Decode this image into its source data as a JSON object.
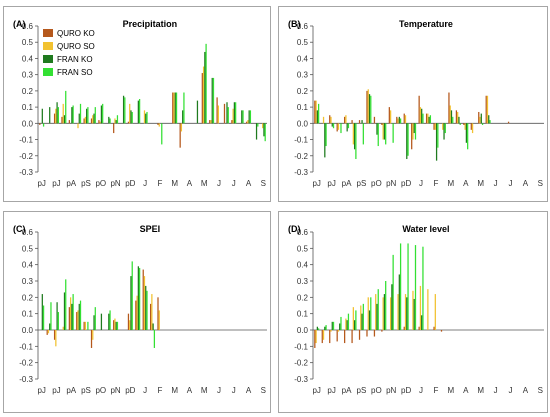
{
  "figure": {
    "colors": {
      "QURO KO": "#b5581c",
      "QURO SO": "#f2c230",
      "FRAN KO": "#1f7a1f",
      "FRAN SO": "#33e033",
      "frame": "#a6a6a6",
      "axis": "#555555"
    }
  },
  "chart_data": [
    {
      "type": "bar",
      "panel_label": "(A)",
      "title": "Precipitation",
      "categories": [
        "pJ",
        "",
        "pJ",
        "",
        "pA",
        "",
        "pS",
        "",
        "pO",
        "",
        "pN",
        "",
        "pD",
        "",
        "J",
        "",
        "F",
        "",
        "M",
        "",
        "A",
        "",
        "M",
        "",
        "J",
        "",
        "J",
        "",
        "A",
        "",
        "S"
      ],
      "ylim": [
        -0.3,
        0.6
      ],
      "yticks": [
        "-0.3",
        "-0.2",
        "-0.1",
        "0.0",
        "0.1",
        "0.2",
        "0.3",
        "0.4",
        "0.5",
        "0.6"
      ],
      "legend": [
        "QURO KO",
        "QURO SO",
        "FRAN KO",
        "FRAN SO"
      ],
      "series": [
        {
          "name": "QURO KO",
          "values": [
            -0.01,
            0.0,
            0.06,
            0.04,
            0.02,
            0.0,
            0.03,
            0.03,
            0.02,
            0.0,
            -0.06,
            0.0,
            0.01,
            0.0,
            0.0,
            0.0,
            -0.01,
            0.0,
            0.19,
            -0.15,
            0.0,
            0.0,
            0.31,
            0.02,
            0.16,
            0.12,
            0.02,
            0.0,
            0.01,
            0.0,
            0.0
          ]
        },
        {
          "name": "QURO SO",
          "values": [
            0.0,
            0.0,
            0.09,
            0.12,
            0.0,
            -0.03,
            0.04,
            0.05,
            0.01,
            0.0,
            0.03,
            0.0,
            0.12,
            0.0,
            0.08,
            0.0,
            -0.02,
            0.0,
            0.19,
            -0.05,
            0.0,
            0.0,
            0.35,
            0.02,
            0.11,
            0.0,
            0.09,
            0.0,
            0.02,
            0.0,
            -0.03
          ]
        },
        {
          "name": "FRAN KO",
          "values": [
            0.09,
            0.1,
            0.13,
            0.05,
            0.1,
            0.06,
            0.09,
            0.06,
            0.11,
            0.04,
            0.02,
            0.17,
            0.08,
            0.14,
            0.06,
            0.0,
            0.0,
            0.0,
            0.19,
            0.08,
            0.0,
            0.14,
            0.44,
            0.28,
            0.0,
            0.13,
            0.13,
            0.08,
            0.08,
            -0.1,
            -0.08
          ]
        },
        {
          "name": "FRAN SO",
          "values": [
            -0.02,
            0.0,
            0.1,
            0.2,
            0.11,
            0.12,
            0.1,
            0.1,
            0.12,
            0.03,
            0.05,
            0.16,
            0.07,
            0.15,
            0.07,
            0.0,
            -0.13,
            0.0,
            0.19,
            0.19,
            0.0,
            0.0,
            0.49,
            0.28,
            0.0,
            0.1,
            0.13,
            0.08,
            0.08,
            -0.02,
            -0.11
          ]
        }
      ]
    },
    {
      "type": "bar",
      "panel_label": "(B)",
      "title": "Temperature",
      "categories": [
        "pJ",
        "",
        "pJ",
        "",
        "pA",
        "",
        "pS",
        "",
        "pO",
        "",
        "pN",
        "",
        "pD",
        "",
        "J",
        "",
        "F",
        "",
        "M",
        "",
        "A",
        "",
        "M",
        "",
        "J",
        "",
        "J",
        "",
        "A",
        "",
        "S"
      ],
      "ylim": [
        -0.3,
        0.6
      ],
      "yticks": [
        "-0.3",
        "-0.2",
        "-0.1",
        "0.0",
        "0.1",
        "0.2",
        "0.3",
        "0.4",
        "0.5",
        "0.6"
      ],
      "series": [
        {
          "name": "QURO KO",
          "values": [
            0.14,
            0.0,
            0.05,
            -0.05,
            0.04,
            0.02,
            0.02,
            0.2,
            0.04,
            -0.01,
            0.1,
            0.04,
            0.06,
            -0.16,
            0.17,
            0.06,
            -0.04,
            0.0,
            0.19,
            0.08,
            -0.01,
            -0.04,
            0.07,
            0.17,
            0.0,
            0.0,
            0.01,
            0.0,
            0.0,
            0.0,
            0.0
          ]
        },
        {
          "name": "QURO SO",
          "values": [
            0.14,
            0.04,
            0.04,
            -0.04,
            0.05,
            -0.13,
            0.0,
            0.21,
            0.0,
            -0.1,
            0.08,
            0.03,
            0.05,
            -0.1,
            0.1,
            0.06,
            -0.04,
            -0.04,
            0.11,
            0.07,
            -0.04,
            -0.06,
            0.04,
            0.17,
            0.0,
            0.0,
            0.0,
            0.0,
            0.0,
            0.0,
            0.0
          ]
        },
        {
          "name": "FRAN KO",
          "values": [
            0.08,
            -0.21,
            -0.02,
            0.0,
            -0.05,
            -0.16,
            0.02,
            0.18,
            -0.07,
            -0.1,
            0.0,
            0.04,
            -0.22,
            -0.06,
            0.09,
            0.04,
            -0.23,
            -0.1,
            0.08,
            0.04,
            -0.12,
            0.0,
            0.06,
            0.05,
            0.0,
            0.0,
            0.0,
            0.0,
            0.0,
            0.0,
            0.0
          ]
        },
        {
          "name": "FRAN SO",
          "values": [
            0.12,
            -0.14,
            -0.03,
            -0.06,
            -0.03,
            -0.22,
            -0.13,
            0.17,
            -0.14,
            -0.13,
            -0.12,
            0.03,
            -0.2,
            -0.1,
            0.06,
            0.05,
            -0.15,
            -0.06,
            0.04,
            -0.01,
            -0.16,
            0.0,
            -0.01,
            0.02,
            0.0,
            0.0,
            0.0,
            0.0,
            0.0,
            0.0,
            0.0
          ]
        }
      ]
    },
    {
      "type": "bar",
      "panel_label": "(C)",
      "title": "SPEI",
      "categories": [
        "pJ",
        "",
        "pJ",
        "",
        "pA",
        "",
        "pS",
        "",
        "pO",
        "",
        "pN",
        "",
        "pD",
        "",
        "J",
        "",
        "F",
        "",
        "M",
        "",
        "A",
        "",
        "M",
        "",
        "J",
        "",
        "J",
        "",
        "A",
        "",
        "S"
      ],
      "ylim": [
        -0.3,
        0.6
      ],
      "yticks": [
        "-0.3",
        "-0.2",
        "-0.1",
        "0.0",
        "0.1",
        "0.2",
        "0.3",
        "0.4",
        "0.5",
        "0.6"
      ],
      "series": [
        {
          "name": "QURO KO",
          "values": [
            0.0,
            -0.03,
            -0.06,
            0.0,
            0.14,
            0.11,
            0.05,
            -0.11,
            0.0,
            0.0,
            0.06,
            0.0,
            0.1,
            0.18,
            0.37,
            0.16,
            0.2,
            0.0,
            0.0,
            0.0,
            0.0,
            0.0,
            0.0,
            0.0,
            0.0,
            0.0,
            0.0,
            0.0,
            0.0,
            0.0,
            0.0
          ]
        },
        {
          "name": "QURO SO",
          "values": [
            0.0,
            -0.02,
            -0.1,
            0.02,
            0.2,
            0.12,
            0.05,
            -0.06,
            0.0,
            0.0,
            0.07,
            0.0,
            0.06,
            0.21,
            0.33,
            0.22,
            0.12,
            0.0,
            0.0,
            0.0,
            0.0,
            0.0,
            0.0,
            0.0,
            0.0,
            0.0,
            0.0,
            0.0,
            0.0,
            0.0,
            0.0
          ]
        },
        {
          "name": "FRAN KO",
          "values": [
            0.22,
            0.04,
            0.17,
            0.23,
            0.16,
            0.16,
            0.0,
            0.09,
            0.1,
            0.1,
            0.05,
            0.0,
            0.33,
            0.39,
            0.27,
            0.04,
            0.0,
            0.0,
            0.0,
            0.0,
            0.0,
            0.0,
            0.0,
            0.0,
            0.0,
            0.0,
            0.0,
            0.0,
            0.0,
            0.0,
            0.0
          ]
        },
        {
          "name": "FRAN SO",
          "values": [
            0.15,
            0.17,
            0.11,
            0.31,
            0.22,
            0.18,
            0.05,
            0.14,
            0.0,
            0.12,
            0.05,
            0.0,
            0.42,
            0.38,
            0.24,
            -0.11,
            0.0,
            0.0,
            0.0,
            0.0,
            0.0,
            0.0,
            0.0,
            0.0,
            0.0,
            0.0,
            0.0,
            0.0,
            0.0,
            0.0,
            0.0
          ]
        }
      ]
    },
    {
      "type": "bar",
      "panel_label": "(D)",
      "title": "Water level",
      "categories": [
        "pJ",
        "",
        "pJ",
        "",
        "pA",
        "",
        "pS",
        "",
        "pO",
        "",
        "pN",
        "",
        "pD",
        "",
        "J",
        "",
        "F",
        "",
        "M",
        "",
        "A",
        "",
        "M",
        "",
        "J",
        "",
        "J",
        "",
        "A",
        "",
        "S"
      ],
      "ylim": [
        -0.3,
        0.6
      ],
      "yticks": [
        "-0.3",
        "-0.2",
        "-0.1",
        "0.0",
        "0.1",
        "0.2",
        "0.3",
        "0.4",
        "0.5",
        "0.6"
      ],
      "series": [
        {
          "name": "QURO KO",
          "values": [
            -0.11,
            -0.08,
            -0.08,
            -0.07,
            -0.08,
            -0.08,
            -0.06,
            -0.04,
            -0.04,
            -0.01,
            0.0,
            0.0,
            0.02,
            0.0,
            0.02,
            0.0,
            0.02,
            -0.01,
            0.0,
            0.0,
            0.0,
            0.0,
            0.0,
            0.0,
            0.0,
            0.0,
            0.0,
            0.0,
            0.0,
            0.0,
            0.0
          ]
        },
        {
          "name": "QURO SO",
          "values": [
            -0.08,
            -0.06,
            -0.01,
            -0.01,
            0.07,
            0.14,
            0.15,
            0.2,
            0.22,
            0.2,
            0.2,
            0.22,
            0.22,
            0.24,
            0.27,
            0.25,
            0.22,
            0.0,
            0.0,
            0.0,
            0.0,
            0.0,
            0.0,
            0.0,
            0.0,
            0.0,
            0.0,
            0.0,
            0.0,
            0.0,
            0.0
          ]
        },
        {
          "name": "FRAN KO",
          "values": [
            0.02,
            0.02,
            0.05,
            0.04,
            0.06,
            0.06,
            0.1,
            0.12,
            0.16,
            0.22,
            0.28,
            0.34,
            0.2,
            0.19,
            0.09,
            0.0,
            0.0,
            0.0,
            0.0,
            0.0,
            0.0,
            0.0,
            0.0,
            0.0,
            0.0,
            0.0,
            0.0,
            0.0,
            0.0,
            0.0,
            0.0
          ]
        },
        {
          "name": "FRAN SO",
          "values": [
            0.01,
            0.03,
            0.05,
            0.08,
            0.1,
            0.12,
            0.16,
            0.2,
            0.25,
            0.3,
            0.46,
            0.53,
            0.53,
            0.52,
            0.51,
            0.0,
            0.0,
            0.0,
            0.0,
            0.0,
            0.0,
            0.0,
            0.0,
            0.0,
            0.0,
            0.0,
            0.0,
            0.0,
            0.0,
            0.0,
            0.0
          ]
        }
      ]
    }
  ]
}
